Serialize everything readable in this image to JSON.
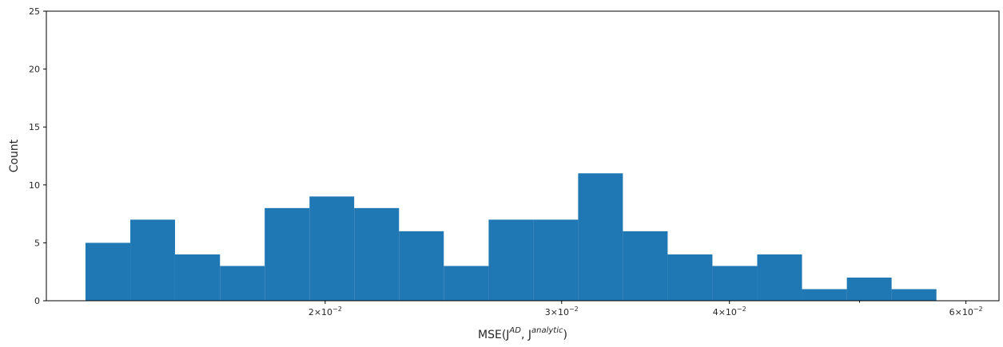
{
  "chart_data": {
    "type": "bar",
    "subtype": "histogram",
    "xscale": "log",
    "x_base": "10",
    "x_exponent": "−2",
    "xlabel": {
      "base": "MSE(J",
      "sup1": "AD",
      "mid": ", J",
      "sup2": "analytic",
      "end": ")"
    },
    "ylabel": "Count",
    "ylim": [
      0,
      25
    ],
    "yticks": [
      0,
      5,
      10,
      15,
      20,
      25
    ],
    "xticks_major": [
      {
        "mantissa": "2",
        "value": 0.02
      },
      {
        "mantissa": "3",
        "value": 0.03
      },
      {
        "mantissa": "4",
        "value": 0.04
      },
      {
        "mantissa": "6",
        "value": 0.06
      }
    ],
    "xticks_minor": [
      0.05
    ],
    "xlim": [
      0.0124,
      0.0635
    ],
    "bin_edges": [
      0.01326,
      0.01432,
      0.01546,
      0.0167,
      0.01803,
      0.01947,
      0.02102,
      0.0227,
      0.02451,
      0.02647,
      0.02858,
      0.03086,
      0.03332,
      0.03598,
      0.03885,
      0.04195,
      0.0453,
      0.04892,
      0.05282,
      0.05704,
      0.06159
    ],
    "counts": [
      5,
      7,
      4,
      3,
      8,
      9,
      8,
      6,
      3,
      7,
      7,
      11,
      6,
      4,
      3,
      4,
      1,
      2,
      1,
      0
    ],
    "bar_color": "#1f77b4",
    "grid": false
  }
}
